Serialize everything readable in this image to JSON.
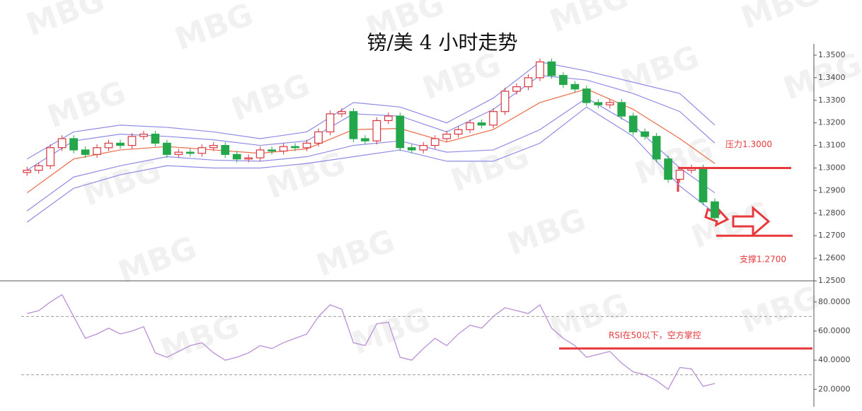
{
  "chart_data": [
    {
      "type": "candlestick",
      "title": "镑/美 4 小时走势",
      "watermark": "MBG",
      "up_color": "#d9363e",
      "down_color": "#23a74a",
      "open": [
        1.298,
        1.299,
        1.301,
        1.309,
        1.313,
        1.308,
        1.306,
        1.309,
        1.311,
        1.31,
        1.314,
        1.315,
        1.311,
        1.306,
        1.307,
        1.3065,
        1.309,
        1.31,
        1.306,
        1.304,
        1.3045,
        1.308,
        1.3075,
        1.3095,
        1.309,
        1.311,
        1.316,
        1.324,
        1.325,
        1.313,
        1.312,
        1.321,
        1.323,
        1.309,
        1.308,
        1.31,
        1.313,
        1.315,
        1.317,
        1.32,
        1.319,
        1.325,
        1.334,
        1.336,
        1.34,
        1.347,
        1.341,
        1.337,
        1.335,
        1.329,
        1.328,
        1.329,
        1.323,
        1.316,
        1.314,
        1.304,
        1.295,
        1.299,
        1.3,
        1.285
      ],
      "high": [
        1.3005,
        1.3025,
        1.3105,
        1.3145,
        1.3145,
        1.3095,
        1.3105,
        1.3125,
        1.3125,
        1.3155,
        1.3165,
        1.3165,
        1.3125,
        1.3085,
        1.3085,
        1.3105,
        1.3115,
        1.3115,
        1.3075,
        1.306,
        1.3095,
        1.3095,
        1.311,
        1.311,
        1.3125,
        1.3175,
        1.3255,
        1.3265,
        1.3265,
        1.3145,
        1.3225,
        1.3245,
        1.3245,
        1.3105,
        1.3115,
        1.3145,
        1.3165,
        1.3185,
        1.3215,
        1.3215,
        1.3265,
        1.3355,
        1.3375,
        1.3415,
        1.3485,
        1.3485,
        1.3425,
        1.3385,
        1.3365,
        1.3305,
        1.3305,
        1.3305,
        1.3245,
        1.3175,
        1.3155,
        1.3055,
        1.3005,
        1.3015,
        1.3015,
        1.2865
      ],
      "low": [
        1.2965,
        1.2975,
        1.2995,
        1.3075,
        1.3065,
        1.3045,
        1.3045,
        1.3075,
        1.3085,
        1.3085,
        1.3125,
        1.3095,
        1.3045,
        1.3045,
        1.305,
        1.305,
        1.3075,
        1.3045,
        1.3025,
        1.3025,
        1.303,
        1.306,
        1.306,
        1.3075,
        1.3075,
        1.3095,
        1.3145,
        1.3225,
        1.3115,
        1.3105,
        1.3105,
        1.3195,
        1.3075,
        1.3065,
        1.3065,
        1.3085,
        1.3115,
        1.3135,
        1.3155,
        1.3175,
        1.3175,
        1.3235,
        1.3325,
        1.3345,
        1.3385,
        1.3395,
        1.3355,
        1.3335,
        1.3275,
        1.3265,
        1.3265,
        1.3215,
        1.3145,
        1.3125,
        1.3025,
        1.2935,
        1.2935,
        1.2975,
        1.2835,
        1.2765
      ],
      "close": [
        1.299,
        1.301,
        1.309,
        1.313,
        1.308,
        1.306,
        1.309,
        1.311,
        1.31,
        1.314,
        1.315,
        1.311,
        1.306,
        1.307,
        1.3065,
        1.309,
        1.31,
        1.306,
        1.304,
        1.3045,
        1.308,
        1.3075,
        1.3095,
        1.309,
        1.311,
        1.316,
        1.324,
        1.325,
        1.313,
        1.312,
        1.321,
        1.323,
        1.309,
        1.308,
        1.31,
        1.313,
        1.315,
        1.317,
        1.32,
        1.319,
        1.325,
        1.334,
        1.336,
        1.34,
        1.347,
        1.341,
        1.337,
        1.335,
        1.329,
        1.328,
        1.329,
        1.323,
        1.316,
        1.314,
        1.304,
        1.295,
        1.299,
        1.3,
        1.285,
        1.278
      ],
      "band_x": [
        0,
        4,
        8,
        12,
        16,
        20,
        24,
        28,
        32,
        36,
        40,
        44,
        48,
        52,
        56,
        59
      ],
      "bands": [
        {
          "color": "#8f8be6",
          "values": [
            1.304,
            1.316,
            1.319,
            1.318,
            1.316,
            1.313,
            1.316,
            1.329,
            1.327,
            1.32,
            1.331,
            1.347,
            1.343,
            1.338,
            1.333,
            1.319
          ]
        },
        {
          "color": "#8f8be6",
          "values": [
            1.299,
            1.312,
            1.315,
            1.314,
            1.3125,
            1.31,
            1.312,
            1.324,
            1.323,
            1.316,
            1.326,
            1.341,
            1.339,
            1.333,
            1.325,
            1.311
          ]
        },
        {
          "color": "#ec6a45",
          "values": [
            1.289,
            1.304,
            1.308,
            1.3095,
            1.308,
            1.3065,
            1.3085,
            1.317,
            1.3175,
            1.3115,
            1.317,
            1.329,
            1.335,
            1.326,
            1.313,
            1.302
          ]
        },
        {
          "color": "#8f8be6",
          "values": [
            1.281,
            1.296,
            1.301,
            1.305,
            1.3035,
            1.303,
            1.305,
            1.31,
            1.312,
            1.307,
            1.308,
            1.317,
            1.331,
            1.319,
            1.3,
            1.289
          ]
        },
        {
          "color": "#8f8be6",
          "values": [
            1.276,
            1.291,
            1.297,
            1.301,
            1.3,
            1.3,
            1.302,
            1.305,
            1.308,
            1.303,
            1.303,
            1.311,
            1.327,
            1.314,
            1.292,
            1.28
          ]
        }
      ],
      "xlim": [
        0,
        68
      ],
      "ylim": [
        1.25,
        1.355
      ],
      "yticks": [
        {
          "value": 1.25,
          "label": "1.2500"
        },
        {
          "value": 1.26,
          "label": "1.2600"
        },
        {
          "value": 1.27,
          "label": "1.2700"
        },
        {
          "value": 1.28,
          "label": "1.2800"
        },
        {
          "value": 1.29,
          "label": "1.2900"
        },
        {
          "value": 1.3,
          "label": "1.3000"
        },
        {
          "value": 1.31,
          "label": "1.3100"
        },
        {
          "value": 1.32,
          "label": "1.3200"
        },
        {
          "value": 1.33,
          "label": "1.3300"
        },
        {
          "value": 1.34,
          "label": "1.3400"
        },
        {
          "value": 1.35,
          "label": "1.3500"
        }
      ],
      "annotations": [
        {
          "text": "压力1.3000",
          "value": 1.3,
          "color": "#e8393c"
        },
        {
          "text": "支撑1.2700",
          "value": 1.27,
          "color": "#e8393c"
        }
      ]
    },
    {
      "type": "line",
      "color": "#b98fd6",
      "values": [
        72,
        74,
        80,
        85,
        70,
        55,
        58,
        62,
        58,
        60,
        63,
        45,
        42,
        46,
        50,
        52,
        45,
        40,
        42,
        45,
        50,
        48,
        52,
        55,
        58,
        70,
        78,
        75,
        52,
        50,
        65,
        66,
        42,
        40,
        48,
        55,
        50,
        58,
        64,
        62,
        70,
        76,
        74,
        72,
        78,
        62,
        55,
        50,
        42,
        44,
        46,
        38,
        32,
        30,
        26,
        20,
        35,
        34,
        22,
        24
      ],
      "xlim": [
        0,
        68
      ],
      "ylim": [
        8,
        94
      ],
      "levels": [
        70,
        30
      ],
      "yticks": [
        {
          "value": 20,
          "label": "20.0000"
        },
        {
          "value": 40,
          "label": "40.0000"
        },
        {
          "value": 60,
          "label": "60.0000"
        },
        {
          "value": 80,
          "label": "80.0000"
        }
      ],
      "annotations": [
        {
          "text": "RSI在50以下，空方掌控",
          "value": 48,
          "color": "#e8393c"
        }
      ]
    }
  ]
}
